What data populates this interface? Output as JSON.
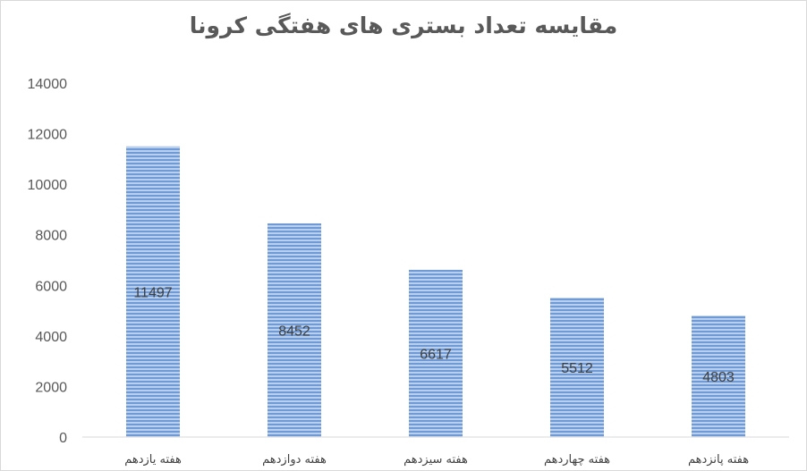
{
  "chart_data": {
    "type": "bar",
    "title": "مقایسه تعداد بستری های هفتگی کرونا",
    "categories": [
      "هفته یازدهم",
      "هفته دوازدهم",
      "هفته سیزدهم",
      "هفته چهاردهم",
      "هفته پانزدهم"
    ],
    "values": [
      11497,
      8452,
      6617,
      5512,
      4803
    ],
    "data_labels": [
      "11497",
      "8452",
      "6617",
      "5512",
      "4803"
    ],
    "yticks": [
      0,
      2000,
      4000,
      6000,
      8000,
      10000,
      12000,
      14000
    ],
    "ylim": [
      0,
      14000
    ],
    "grid": false,
    "legend": "none",
    "colors": {
      "bar_stripe_light": "#b8d0ee",
      "bar_stripe_dark": "#6f9ad6",
      "axis": "#d9d9d9",
      "text": "#595959"
    }
  }
}
